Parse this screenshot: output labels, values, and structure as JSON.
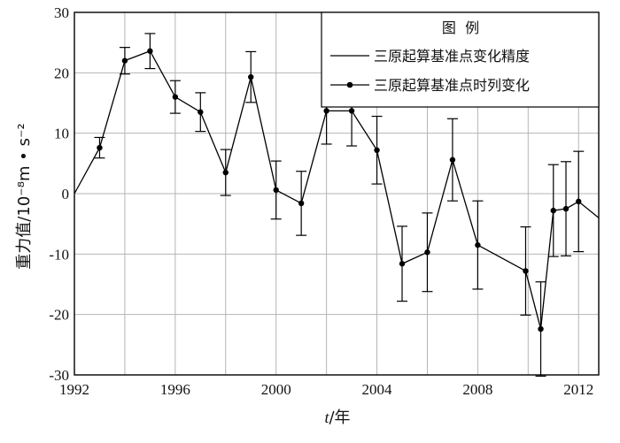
{
  "chart_data": {
    "type": "line",
    "xlabel_italic": "t",
    "xlabel_rest": "/年",
    "ylabel": "重力值/10⁻⁸m • s⁻²",
    "xlim": [
      1992,
      2012.8
    ],
    "ylim": [
      -30,
      30
    ],
    "x_ticks": [
      1992,
      1996,
      2000,
      2004,
      2008,
      2012
    ],
    "y_ticks": [
      30,
      20,
      10,
      0,
      -10,
      -20,
      -30
    ],
    "legend": {
      "placement": "top-right",
      "title": "图  例",
      "items": [
        {
          "label": "三原起算基准点变化精度",
          "marker": "line"
        },
        {
          "label": "三原起算基准点时列变化",
          "marker": "line-dot"
        }
      ]
    },
    "series": [
      {
        "x": [
          1992,
          1993,
          1994,
          1995,
          1996,
          1997,
          1998,
          1999,
          2000,
          2001,
          2002,
          2003,
          2004,
          2005,
          2006,
          2007,
          2008,
          2009.9,
          2010.5,
          2011,
          2011.5,
          2012,
          2012.8
        ],
        "y": [
          0,
          7.6,
          22,
          23.6,
          16,
          13.5,
          3.5,
          19.3,
          0.6,
          -1.6,
          13.7,
          13.7,
          7.2,
          -11.6,
          -9.7,
          5.6,
          -8.5,
          -12.8,
          -22.4,
          -2.8,
          -2.5,
          -1.3,
          -4
        ],
        "err": [
          null,
          1.7,
          2.2,
          2.9,
          2.7,
          3.2,
          3.8,
          4.2,
          4.8,
          5.3,
          5.5,
          5.8,
          5.6,
          6.2,
          6.5,
          6.8,
          7.3,
          7.3,
          7.8,
          7.6,
          7.8,
          8.3,
          null
        ]
      }
    ]
  }
}
